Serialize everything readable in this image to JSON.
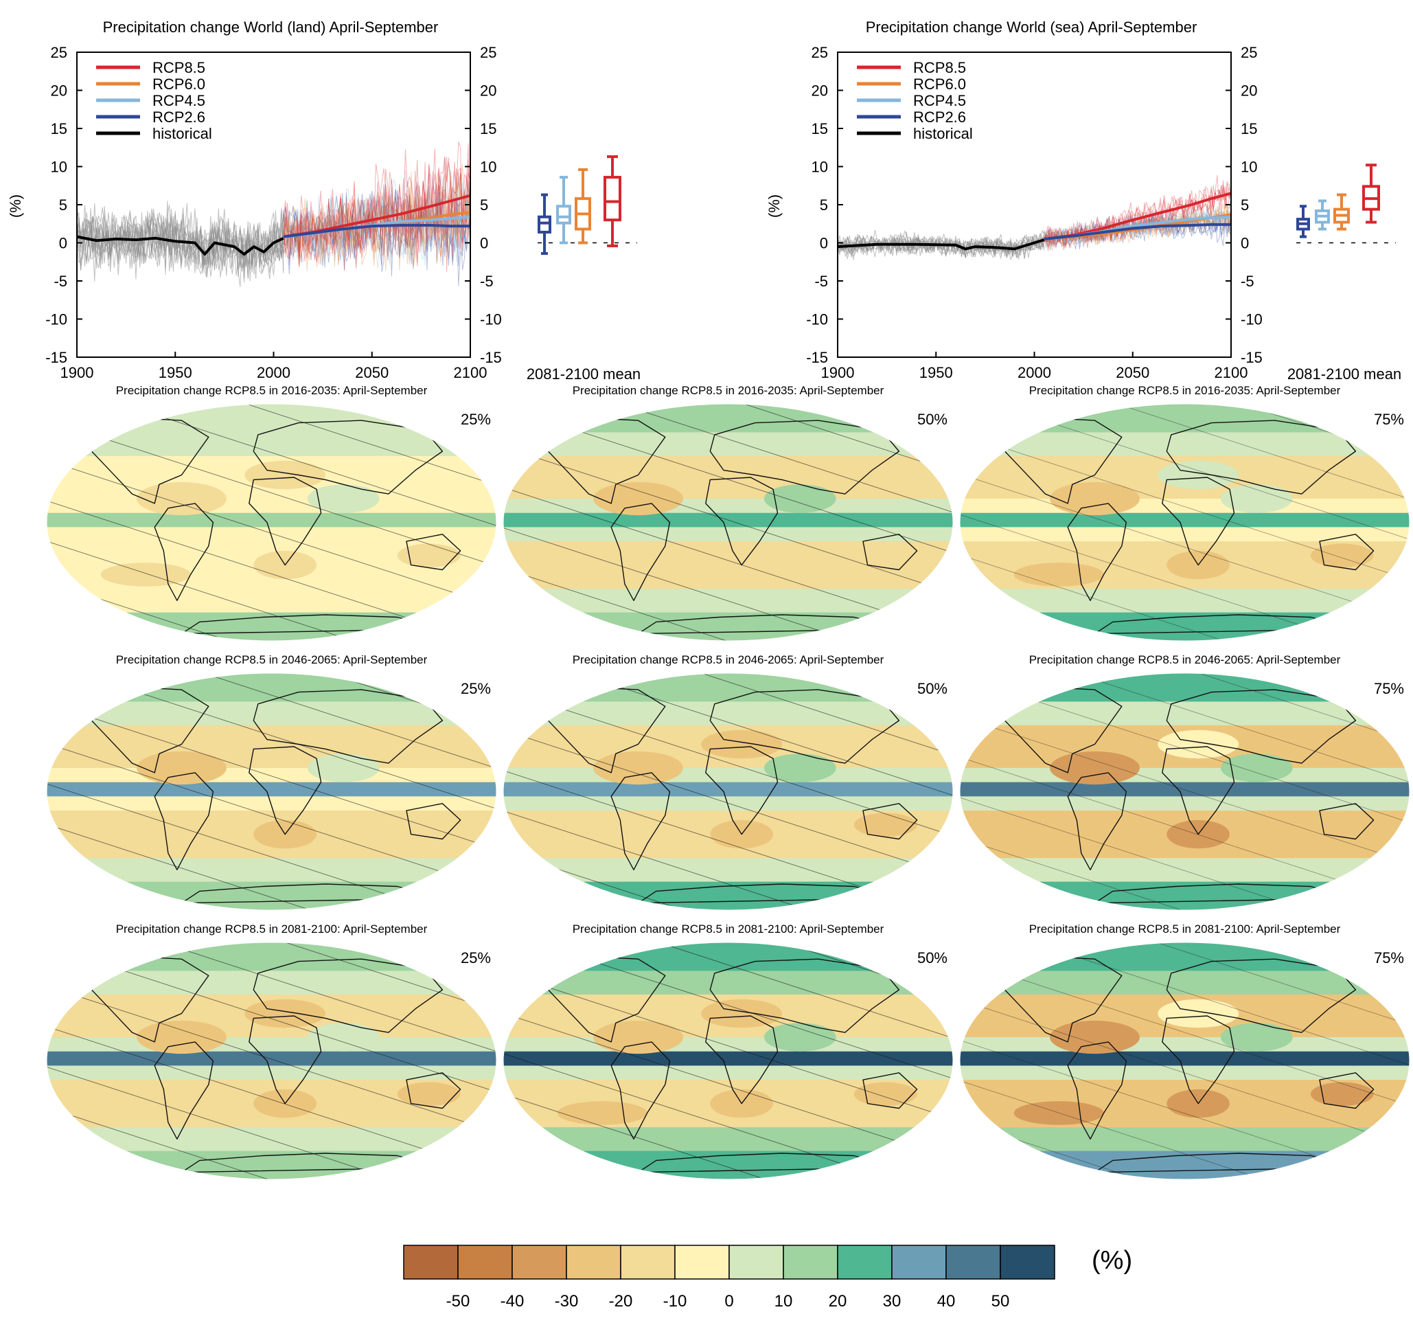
{
  "colors": {
    "rcp85": "#d7262e",
    "rcp60": "#e98434",
    "rcp45": "#86b7dc",
    "rcp26": "#2f4797",
    "historical": "#000000",
    "historical_runs": "#8c8c8c"
  },
  "chart_data": [
    {
      "type": "line",
      "title": "Precipitation change World (land) April-September",
      "ylabel": "(%)",
      "xlim": [
        1900,
        2100
      ],
      "ylim": [
        -15,
        25
      ],
      "xticks": [
        "1900",
        "1950",
        "2000",
        "2050",
        "2100"
      ],
      "yticks": [
        "-15",
        "-10",
        "-5",
        "0",
        "5",
        "10",
        "15",
        "20",
        "25"
      ],
      "legend_position": "top-left",
      "legend": [
        "RCP8.5",
        "RCP6.0",
        "RCP4.5",
        "RCP2.6",
        "historical"
      ],
      "series": [
        {
          "name": "historical",
          "x": [
            1900,
            1910,
            1920,
            1930,
            1940,
            1950,
            1960,
            1965,
            1970,
            1980,
            1985,
            1990,
            1995,
            2000,
            2005
          ],
          "y": [
            0.8,
            0.3,
            0.5,
            0.4,
            0.6,
            0.2,
            0.0,
            -1.5,
            0.0,
            -0.5,
            -1.5,
            -0.5,
            -1.2,
            0.0,
            0.6
          ]
        },
        {
          "name": "RCP8.5",
          "x": [
            2005,
            2020,
            2035,
            2050,
            2065,
            2080,
            2090,
            2100
          ],
          "y": [
            0.8,
            1.4,
            2.2,
            3.0,
            3.8,
            4.8,
            5.5,
            6.2
          ]
        },
        {
          "name": "RCP6.0",
          "x": [
            2005,
            2020,
            2035,
            2050,
            2065,
            2080,
            2090,
            2100
          ],
          "y": [
            0.8,
            1.2,
            1.8,
            2.2,
            2.6,
            3.3,
            3.7,
            4.0
          ]
        },
        {
          "name": "RCP4.5",
          "x": [
            2005,
            2020,
            2035,
            2050,
            2065,
            2080,
            2090,
            2100
          ],
          "y": [
            0.8,
            1.2,
            1.8,
            2.3,
            2.8,
            3.0,
            3.2,
            3.4
          ]
        },
        {
          "name": "RCP2.6",
          "x": [
            2005,
            2020,
            2035,
            2050,
            2065,
            2080,
            2090,
            2100
          ],
          "y": [
            0.8,
            1.3,
            1.8,
            2.2,
            2.3,
            2.3,
            2.2,
            2.2
          ]
        }
      ],
      "box_label": "2081-2100 mean",
      "boxes": [
        {
          "name": "RCP2.6",
          "min": -1.4,
          "q1": 1.4,
          "median": 2.6,
          "q3": 3.4,
          "max": 6.3
        },
        {
          "name": "RCP4.5",
          "min": 0.0,
          "q1": 2.6,
          "median": 3.4,
          "q3": 4.8,
          "max": 8.6
        },
        {
          "name": "RCP6.0",
          "min": 0.0,
          "q1": 1.8,
          "median": 3.8,
          "q3": 5.8,
          "max": 9.6
        },
        {
          "name": "RCP8.5",
          "min": -0.4,
          "q1": 3.0,
          "median": 5.4,
          "q3": 8.6,
          "max": 11.3
        }
      ]
    },
    {
      "type": "line",
      "title": "Precipitation change World (sea) April-September",
      "ylabel": "(%)",
      "xlim": [
        1900,
        2100
      ],
      "ylim": [
        -15,
        25
      ],
      "xticks": [
        "1900",
        "1950",
        "2000",
        "2050",
        "2100"
      ],
      "yticks": [
        "-15",
        "-10",
        "-5",
        "0",
        "5",
        "10",
        "15",
        "20",
        "25"
      ],
      "legend_position": "top-left",
      "legend": [
        "RCP8.5",
        "RCP6.0",
        "RCP4.5",
        "RCP2.6",
        "historical"
      ],
      "series": [
        {
          "name": "historical",
          "x": [
            1900,
            1920,
            1940,
            1960,
            1965,
            1970,
            1980,
            1990,
            1995,
            2000,
            2005
          ],
          "y": [
            -0.5,
            -0.2,
            -0.2,
            -0.3,
            -0.8,
            -0.5,
            -0.6,
            -0.8,
            -0.4,
            0.0,
            0.4
          ]
        },
        {
          "name": "RCP8.5",
          "x": [
            2005,
            2020,
            2035,
            2050,
            2065,
            2080,
            2090,
            2100
          ],
          "y": [
            0.5,
            1.0,
            1.9,
            3.0,
            4.0,
            5.0,
            5.8,
            6.5
          ]
        },
        {
          "name": "RCP6.0",
          "x": [
            2005,
            2020,
            2035,
            2050,
            2065,
            2080,
            2090,
            2100
          ],
          "y": [
            0.5,
            0.8,
            1.2,
            1.7,
            2.3,
            2.9,
            3.3,
            3.7
          ]
        },
        {
          "name": "RCP4.5",
          "x": [
            2005,
            2020,
            2035,
            2050,
            2065,
            2080,
            2090,
            2100
          ],
          "y": [
            0.5,
            0.9,
            1.5,
            2.2,
            2.7,
            3.1,
            3.3,
            3.4
          ]
        },
        {
          "name": "RCP2.6",
          "x": [
            2005,
            2020,
            2035,
            2050,
            2065,
            2080,
            2090,
            2100
          ],
          "y": [
            0.5,
            0.9,
            1.4,
            1.9,
            2.2,
            2.3,
            2.4,
            2.4
          ]
        }
      ],
      "box_label": "2081-2100 mean",
      "boxes": [
        {
          "name": "RCP2.6",
          "min": 0.8,
          "q1": 1.8,
          "median": 2.5,
          "q3": 3.1,
          "max": 4.8
        },
        {
          "name": "RCP4.5",
          "min": 1.8,
          "q1": 2.7,
          "median": 3.5,
          "q3": 4.2,
          "max": 5.5
        },
        {
          "name": "RCP6.0",
          "min": 1.8,
          "q1": 2.7,
          "median": 3.6,
          "q3": 4.4,
          "max": 6.3
        },
        {
          "name": "RCP8.5",
          "min": 2.7,
          "q1": 4.4,
          "median": 5.8,
          "q3": 7.4,
          "max": 10.2
        }
      ]
    },
    {
      "type": "heatmap",
      "rows": [
        {
          "title": "Precipitation change RCP8.5 in 2016-2035: April-September",
          "percentiles": [
            "25%",
            "50%",
            "75%"
          ]
        },
        {
          "title": "Precipitation change RCP8.5 in 2046-2065: April-September",
          "percentiles": [
            "25%",
            "50%",
            "75%"
          ]
        },
        {
          "title": "Precipitation change RCP8.5 in 2081-2100: April-September",
          "percentiles": [
            "25%",
            "50%",
            "75%"
          ]
        }
      ],
      "colorbar": {
        "unit": "(%)",
        "ticks": [
          "-50",
          "-40",
          "-30",
          "-20",
          "-10",
          "0",
          "10",
          "20",
          "30",
          "40",
          "50"
        ],
        "colors": [
          "#b3693a",
          "#c98043",
          "#d69b5b",
          "#ecc57c",
          "#f3db98",
          "#fff3b8",
          "#d3e8bf",
          "#9fd3a0",
          "#4fb792",
          "#6c9fb6",
          "#4b7891",
          "#264f6c"
        ]
      }
    }
  ]
}
